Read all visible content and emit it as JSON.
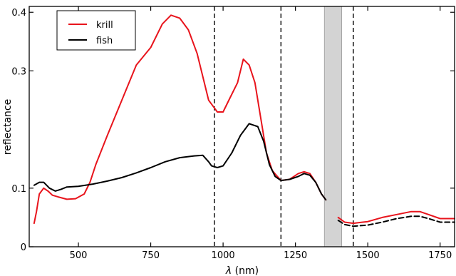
{
  "chart_data": {
    "type": "line",
    "xlabel_var": "λ",
    "xlabel_unit": " (nm)",
    "ylabel": "reflectance",
    "xlim": [
      330,
      1800
    ],
    "ylim": [
      0,
      0.41
    ],
    "x_ticks": [
      500,
      750,
      1000,
      1250,
      1500,
      1750
    ],
    "x_tick_labels": [
      "500",
      "750",
      "1000",
      "1250",
      "1500",
      "1750"
    ],
    "y_ticks": [
      0,
      0.1,
      0.3,
      0.4
    ],
    "y_tick_labels": [
      "0",
      "0.1",
      "0.3",
      "0.4"
    ],
    "legend_position": "top-left",
    "vertical_lines": [
      970,
      1200,
      1450
    ],
    "shaded_band": [
      1350,
      1410
    ],
    "colors": {
      "krill": "#e8141c",
      "fish": "#000000",
      "band": "#d3d3d3"
    },
    "series": [
      {
        "name": "krill",
        "color": "#e8141c",
        "segments": [
          {
            "dashed": false,
            "points": [
              [
                347,
                0.04
              ],
              [
                355,
                0.06
              ],
              [
                365,
                0.09
              ],
              [
                380,
                0.1
              ],
              [
                395,
                0.095
              ],
              [
                410,
                0.088
              ],
              [
                430,
                0.085
              ],
              [
                460,
                0.081
              ],
              [
                490,
                0.082
              ],
              [
                520,
                0.09
              ],
              [
                540,
                0.11
              ],
              [
                560,
                0.14
              ],
              [
                600,
                0.19
              ],
              [
                650,
                0.25
              ],
              [
                700,
                0.31
              ],
              [
                750,
                0.34
              ],
              [
                790,
                0.38
              ],
              [
                820,
                0.395
              ],
              [
                850,
                0.39
              ],
              [
                880,
                0.37
              ],
              [
                910,
                0.33
              ],
              [
                930,
                0.29
              ],
              [
                950,
                0.25
              ],
              [
                965,
                0.24
              ],
              [
                980,
                0.23
              ],
              [
                1000,
                0.23
              ],
              [
                1020,
                0.25
              ],
              [
                1050,
                0.28
              ],
              [
                1070,
                0.32
              ],
              [
                1090,
                0.31
              ],
              [
                1110,
                0.28
              ],
              [
                1130,
                0.22
              ],
              [
                1150,
                0.16
              ],
              [
                1170,
                0.13
              ],
              [
                1200,
                0.113
              ],
              [
                1230,
                0.115
              ],
              [
                1260,
                0.125
              ],
              [
                1280,
                0.128
              ],
              [
                1300,
                0.125
              ],
              [
                1320,
                0.11
              ],
              [
                1340,
                0.09
              ],
              [
                1355,
                0.08
              ]
            ]
          },
          {
            "dashed": false,
            "points": [
              [
                1398,
                0.05
              ],
              [
                1420,
                0.042
              ],
              [
                1450,
                0.04
              ],
              [
                1500,
                0.043
              ],
              [
                1550,
                0.05
              ],
              [
                1600,
                0.055
              ],
              [
                1650,
                0.06
              ],
              [
                1680,
                0.06
              ],
              [
                1710,
                0.055
              ],
              [
                1750,
                0.048
              ],
              [
                1800,
                0.048
              ]
            ]
          }
        ]
      },
      {
        "name": "fish",
        "color": "#000000",
        "segments": [
          {
            "dashed": false,
            "points": [
              [
                347,
                0.105
              ],
              [
                365,
                0.11
              ],
              [
                380,
                0.11
              ],
              [
                400,
                0.1
              ],
              [
                420,
                0.095
              ],
              [
                440,
                0.098
              ],
              [
                460,
                0.102
              ],
              [
                500,
                0.103
              ],
              [
                550,
                0.107
              ],
              [
                600,
                0.112
              ],
              [
                650,
                0.118
              ],
              [
                700,
                0.126
              ],
              [
                750,
                0.135
              ],
              [
                800,
                0.145
              ],
              [
                850,
                0.152
              ],
              [
                900,
                0.155
              ],
              [
                930,
                0.156
              ],
              [
                950,
                0.145
              ],
              [
                960,
                0.138
              ],
              [
                980,
                0.135
              ],
              [
                1000,
                0.138
              ],
              [
                1030,
                0.16
              ],
              [
                1060,
                0.19
              ],
              [
                1090,
                0.21
              ],
              [
                1120,
                0.205
              ],
              [
                1140,
                0.18
              ],
              [
                1160,
                0.14
              ],
              [
                1180,
                0.12
              ],
              [
                1200,
                0.113
              ],
              [
                1230,
                0.115
              ],
              [
                1260,
                0.12
              ],
              [
                1280,
                0.125
              ],
              [
                1300,
                0.122
              ],
              [
                1320,
                0.11
              ],
              [
                1340,
                0.09
              ],
              [
                1355,
                0.08
              ]
            ]
          },
          {
            "dashed": true,
            "points": [
              [
                1398,
                0.045
              ],
              [
                1420,
                0.038
              ],
              [
                1450,
                0.035
              ],
              [
                1500,
                0.037
              ],
              [
                1550,
                0.042
              ],
              [
                1600,
                0.048
              ],
              [
                1650,
                0.052
              ],
              [
                1680,
                0.052
              ],
              [
                1710,
                0.048
              ],
              [
                1750,
                0.042
              ],
              [
                1800,
                0.042
              ]
            ]
          }
        ]
      }
    ]
  }
}
